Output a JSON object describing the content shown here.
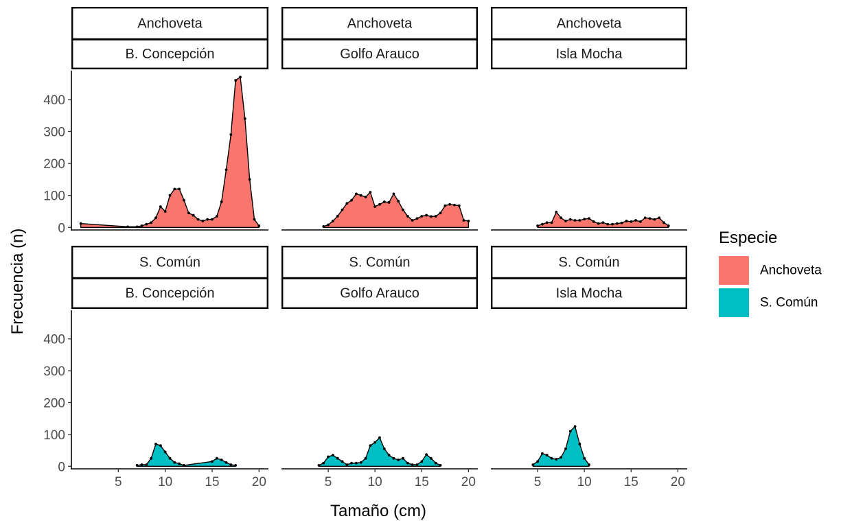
{
  "chart_data": {
    "type": "area",
    "title": "",
    "xlabel": "Tamaño (cm)",
    "ylabel": "Frecuencia (n)",
    "xlim": [
      0,
      21
    ],
    "ylim": [
      -8,
      490
    ],
    "x_ticks": [
      5,
      10,
      15,
      20
    ],
    "y_ticks": [
      0,
      100,
      200,
      300,
      400
    ],
    "grid": false,
    "legend": {
      "title": "Especie",
      "position": "right",
      "entries": [
        {
          "label": "Anchoveta",
          "color": "#F8766D"
        },
        {
          "label": "S. Común",
          "color": "#00BFC4"
        }
      ]
    },
    "row_labels": [
      "Anchoveta",
      "S. Común"
    ],
    "col_labels": [
      "B. Concepción",
      "Golfo Arauco",
      "Isla Mocha"
    ],
    "panels": [
      {
        "species": "Anchoveta",
        "zone": "B. Concepción",
        "color": "#F8766D",
        "points": [
          [
            1,
            12
          ],
          [
            6,
            2
          ],
          [
            7,
            2
          ],
          [
            7.5,
            5
          ],
          [
            8,
            10
          ],
          [
            8.5,
            15
          ],
          [
            9,
            30
          ],
          [
            9.5,
            65
          ],
          [
            10,
            50
          ],
          [
            10.5,
            100
          ],
          [
            11,
            120
          ],
          [
            11.5,
            120
          ],
          [
            12,
            85
          ],
          [
            12.5,
            45
          ],
          [
            13,
            38
          ],
          [
            13.5,
            25
          ],
          [
            14,
            20
          ],
          [
            14.5,
            25
          ],
          [
            15,
            25
          ],
          [
            15.5,
            35
          ],
          [
            16,
            80
          ],
          [
            16.5,
            180
          ],
          [
            17,
            290
          ],
          [
            17.5,
            460
          ],
          [
            18,
            470
          ],
          [
            18.5,
            340
          ],
          [
            19,
            150
          ],
          [
            19.5,
            25
          ],
          [
            20,
            5
          ]
        ]
      },
      {
        "species": "Anchoveta",
        "zone": "Golfo Arauco",
        "color": "#F8766D",
        "points": [
          [
            4.5,
            3
          ],
          [
            5,
            8
          ],
          [
            5.5,
            20
          ],
          [
            6,
            35
          ],
          [
            6.5,
            55
          ],
          [
            7,
            75
          ],
          [
            7.5,
            85
          ],
          [
            8,
            105
          ],
          [
            8.5,
            100
          ],
          [
            9,
            95
          ],
          [
            9.5,
            110
          ],
          [
            10,
            65
          ],
          [
            10.5,
            72
          ],
          [
            11,
            80
          ],
          [
            11.5,
            78
          ],
          [
            12,
            105
          ],
          [
            12.5,
            82
          ],
          [
            13,
            55
          ],
          [
            13.5,
            35
          ],
          [
            14,
            22
          ],
          [
            14.5,
            28
          ],
          [
            15,
            35
          ],
          [
            15.5,
            38
          ],
          [
            16,
            34
          ],
          [
            16.5,
            35
          ],
          [
            17,
            45
          ],
          [
            17.5,
            68
          ],
          [
            18,
            72
          ],
          [
            18.5,
            70
          ],
          [
            19,
            68
          ],
          [
            19.5,
            22
          ],
          [
            20,
            20
          ]
        ]
      },
      {
        "species": "Anchoveta",
        "zone": "Isla Mocha",
        "color": "#F8766D",
        "points": [
          [
            5,
            5
          ],
          [
            5.5,
            10
          ],
          [
            6,
            15
          ],
          [
            6.5,
            15
          ],
          [
            7,
            48
          ],
          [
            7.5,
            30
          ],
          [
            8,
            20
          ],
          [
            8.5,
            25
          ],
          [
            9,
            22
          ],
          [
            9.5,
            22
          ],
          [
            10,
            26
          ],
          [
            10.5,
            28
          ],
          [
            11,
            18
          ],
          [
            11.5,
            12
          ],
          [
            12,
            15
          ],
          [
            12.5,
            10
          ],
          [
            13,
            10
          ],
          [
            13.5,
            12
          ],
          [
            14,
            14
          ],
          [
            14.5,
            20
          ],
          [
            15,
            18
          ],
          [
            15.5,
            22
          ],
          [
            16,
            18
          ],
          [
            16.5,
            30
          ],
          [
            17,
            28
          ],
          [
            17.5,
            25
          ],
          [
            18,
            30
          ],
          [
            18.5,
            15
          ],
          [
            19,
            5
          ]
        ]
      },
      {
        "species": "S. Común",
        "zone": "B. Concepción",
        "color": "#00BFC4",
        "points": [
          [
            7,
            3
          ],
          [
            7.5,
            5
          ],
          [
            8,
            5
          ],
          [
            8.5,
            25
          ],
          [
            9,
            70
          ],
          [
            9.5,
            65
          ],
          [
            10,
            45
          ],
          [
            10.5,
            25
          ],
          [
            11,
            12
          ],
          [
            11.5,
            8
          ],
          [
            12,
            3
          ],
          [
            15,
            15
          ],
          [
            15.5,
            25
          ],
          [
            16,
            20
          ],
          [
            16.5,
            12
          ],
          [
            17,
            5
          ],
          [
            17.5,
            3
          ]
        ]
      },
      {
        "species": "S. Común",
        "zone": "Golfo Arauco",
        "color": "#00BFC4",
        "points": [
          [
            4,
            3
          ],
          [
            4.5,
            10
          ],
          [
            5,
            30
          ],
          [
            5.5,
            35
          ],
          [
            6,
            25
          ],
          [
            6.5,
            15
          ],
          [
            7,
            5
          ],
          [
            7.5,
            10
          ],
          [
            8,
            10
          ],
          [
            8.5,
            12
          ],
          [
            9,
            25
          ],
          [
            9.5,
            65
          ],
          [
            10,
            75
          ],
          [
            10.5,
            90
          ],
          [
            11,
            55
          ],
          [
            11.5,
            35
          ],
          [
            12,
            25
          ],
          [
            12.5,
            20
          ],
          [
            13,
            25
          ],
          [
            13.5,
            10
          ],
          [
            14,
            5
          ],
          [
            14.5,
            5
          ],
          [
            15,
            15
          ],
          [
            15.5,
            37
          ],
          [
            16,
            25
          ],
          [
            16.5,
            10
          ],
          [
            17,
            3
          ]
        ]
      },
      {
        "species": "S. Común",
        "zone": "Isla Mocha",
        "color": "#00BFC4",
        "points": [
          [
            4.5,
            5
          ],
          [
            5,
            15
          ],
          [
            5.5,
            40
          ],
          [
            6,
            35
          ],
          [
            6.5,
            25
          ],
          [
            7,
            22
          ],
          [
            7.5,
            28
          ],
          [
            8,
            55
          ],
          [
            8.5,
            110
          ],
          [
            9,
            125
          ],
          [
            9.5,
            70
          ],
          [
            10,
            25
          ],
          [
            10.5,
            5
          ]
        ]
      }
    ]
  }
}
